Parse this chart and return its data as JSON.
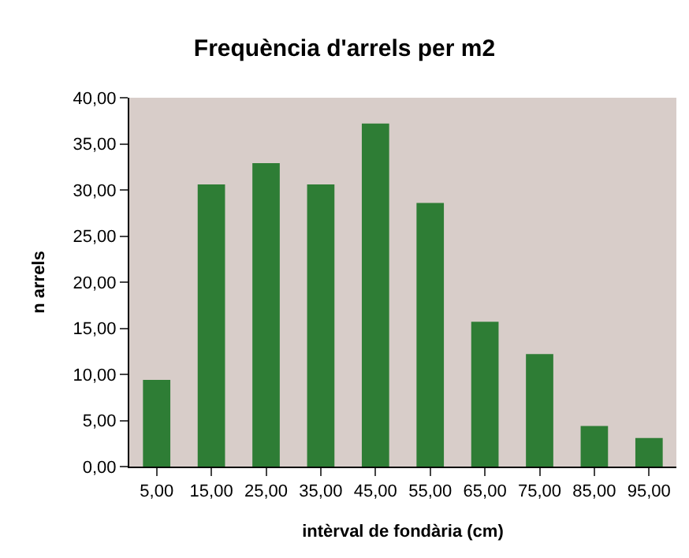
{
  "chart_data": {
    "type": "bar",
    "title": "Frequència d'arrels per m2",
    "xlabel": "intèrval de fondària (cm)",
    "ylabel": "n arrels",
    "categories": [
      "5,00",
      "15,00",
      "25,00",
      "35,00",
      "45,00",
      "55,00",
      "65,00",
      "75,00",
      "85,00",
      "95,00"
    ],
    "values": [
      9.4,
      30.6,
      32.9,
      30.6,
      37.2,
      28.6,
      15.7,
      12.2,
      4.4,
      3.1
    ],
    "color": "#2e7d35",
    "ylim": [
      0,
      40
    ],
    "yticks": [
      {
        "value": 0,
        "label": "0,00"
      },
      {
        "value": 5,
        "label": "5,00"
      },
      {
        "value": 10,
        "label": "10,00"
      },
      {
        "value": 15,
        "label": "15,00"
      },
      {
        "value": 20,
        "label": "20,00"
      },
      {
        "value": 25,
        "label": "25,00"
      },
      {
        "value": 30,
        "label": "30,00"
      },
      {
        "value": 35,
        "label": "35,00"
      },
      {
        "value": 40,
        "label": "40,00"
      }
    ],
    "grid": false
  }
}
